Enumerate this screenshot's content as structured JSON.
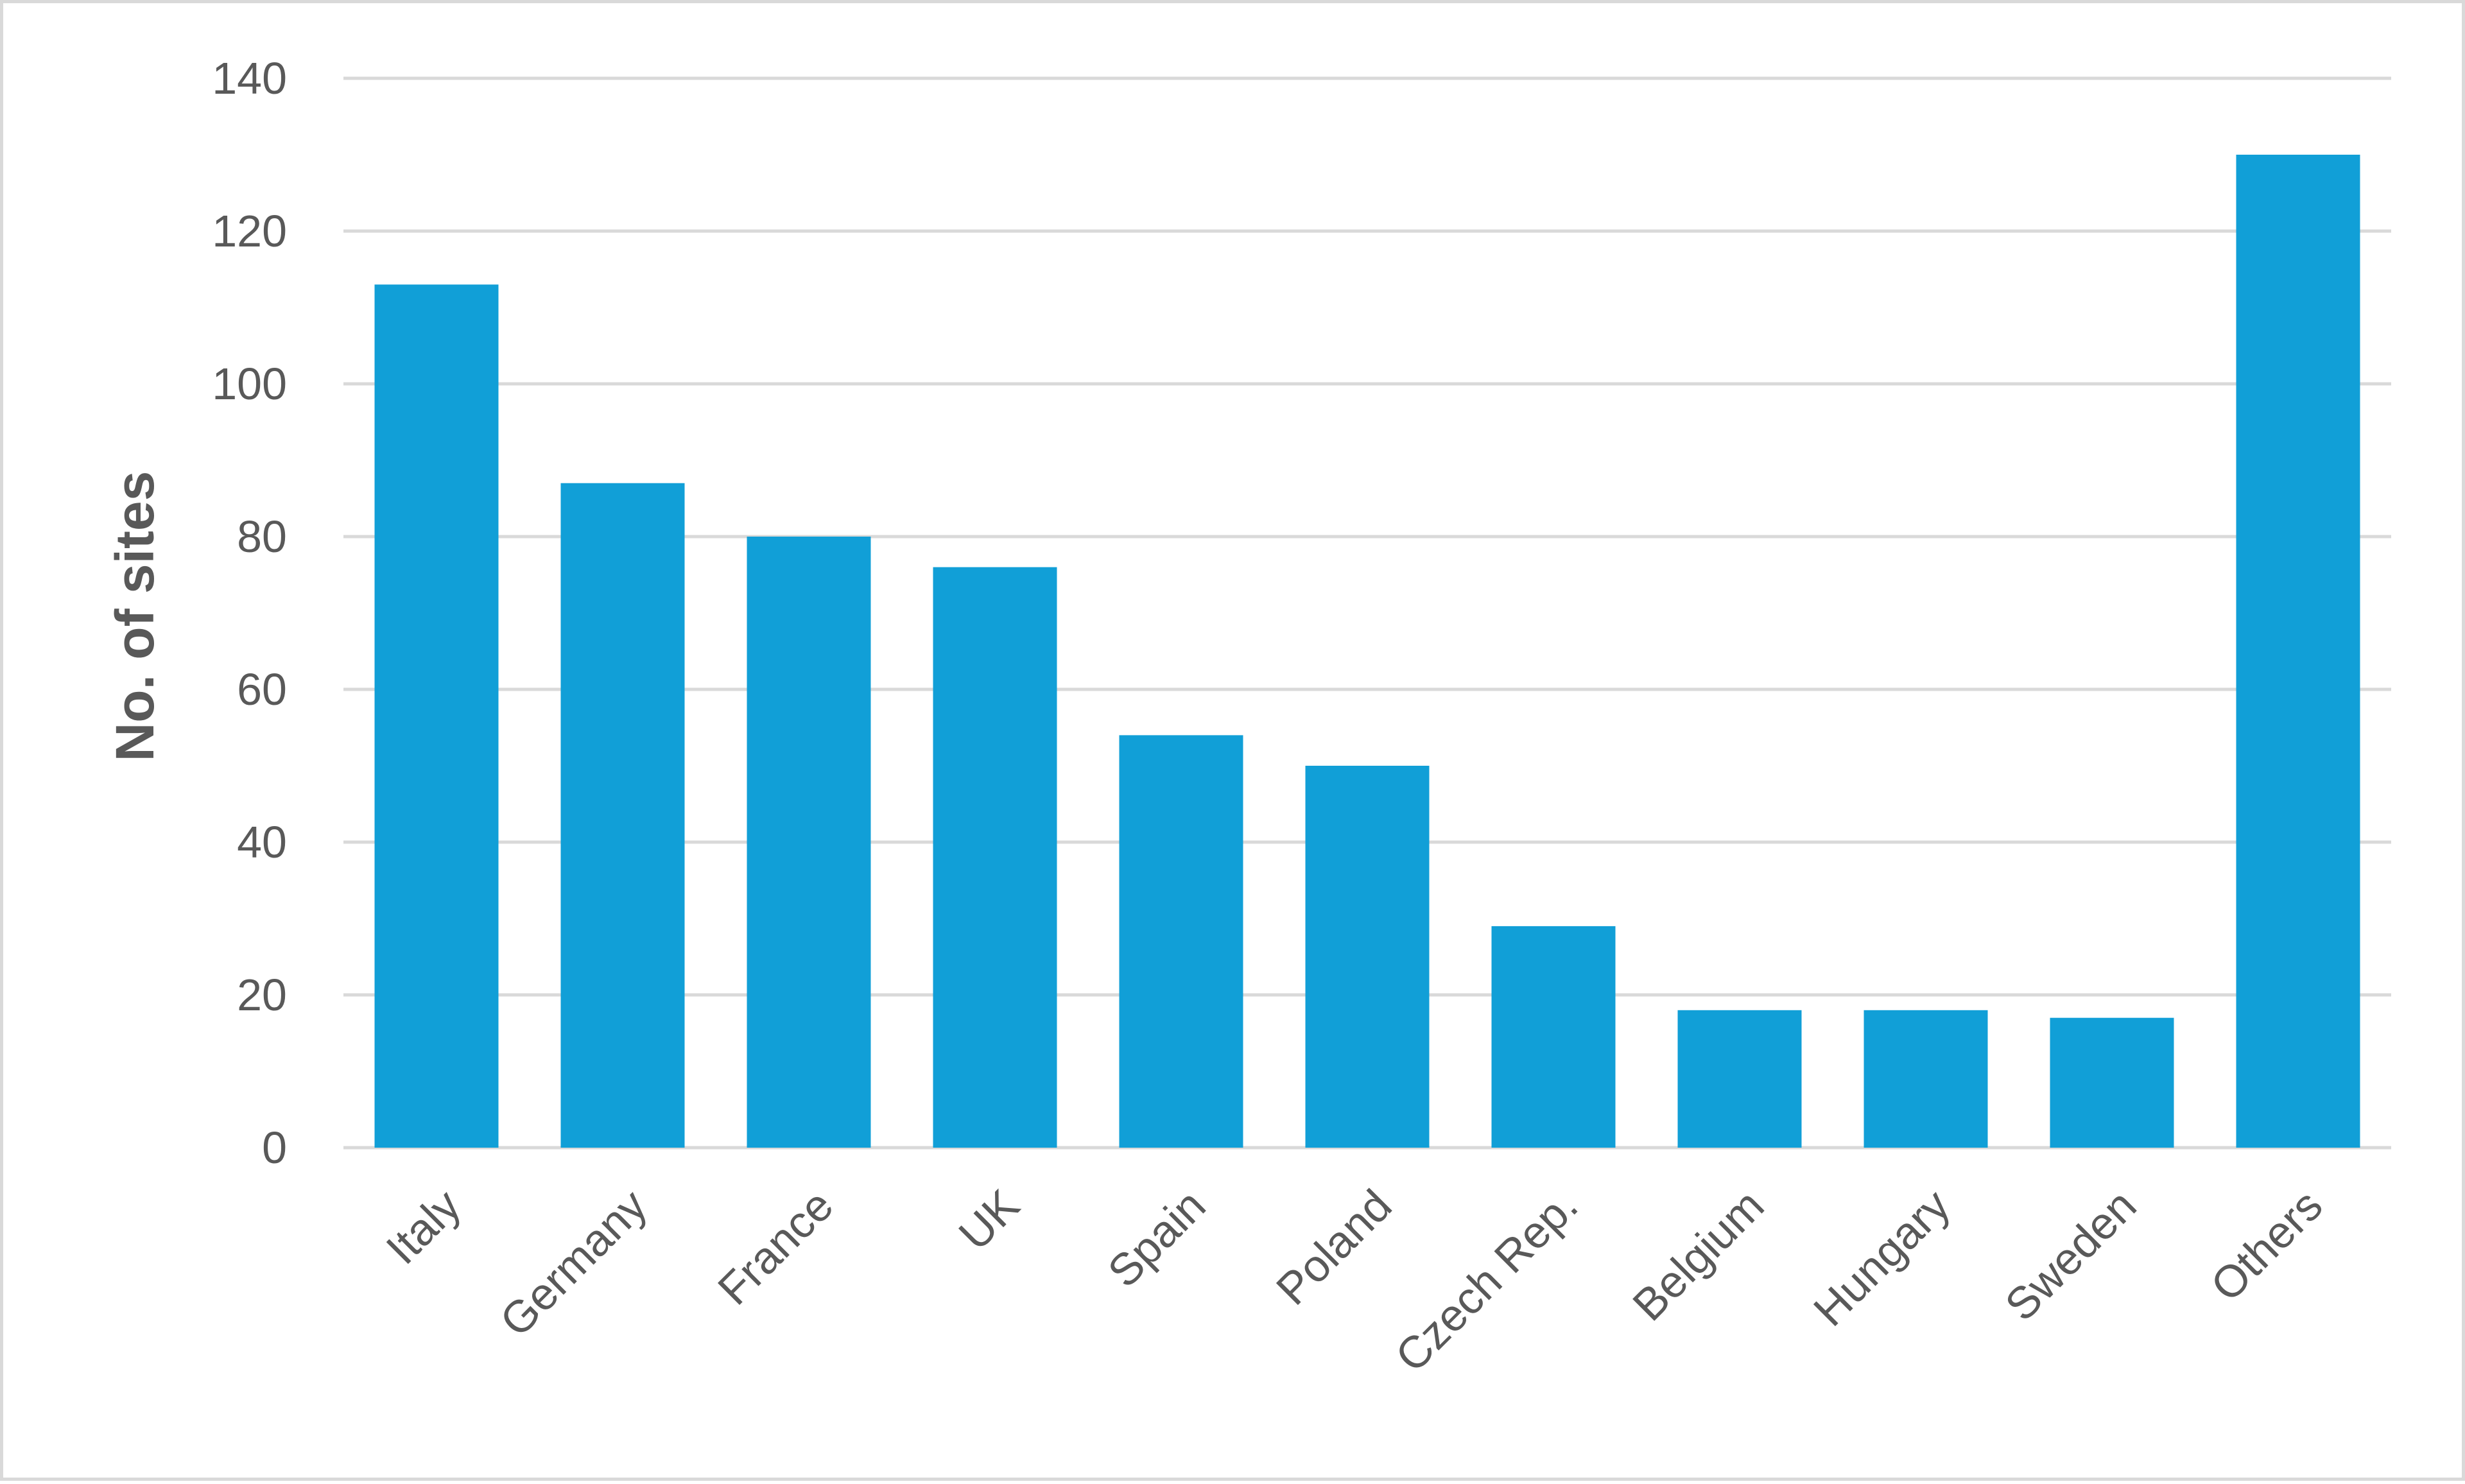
{
  "chart_data": {
    "type": "bar",
    "title": "",
    "xlabel": "",
    "ylabel": "No. of sites",
    "categories": [
      "Italy",
      "Germany",
      "France",
      "UK",
      "Spain",
      "Poland",
      "Czech Rep.",
      "Belgium",
      "Hungary",
      "Sweden",
      "Others"
    ],
    "values": [
      113,
      87,
      80,
      76,
      54,
      50,
      29,
      18,
      18,
      17,
      130
    ],
    "ylim": [
      0,
      140
    ],
    "yticks": [
      0,
      20,
      40,
      60,
      80,
      100,
      120,
      140
    ],
    "grid": true,
    "legend": "none",
    "colors": {
      "bar": "#119FD7",
      "grid": "#d9d9d9",
      "text": "#595959"
    }
  }
}
